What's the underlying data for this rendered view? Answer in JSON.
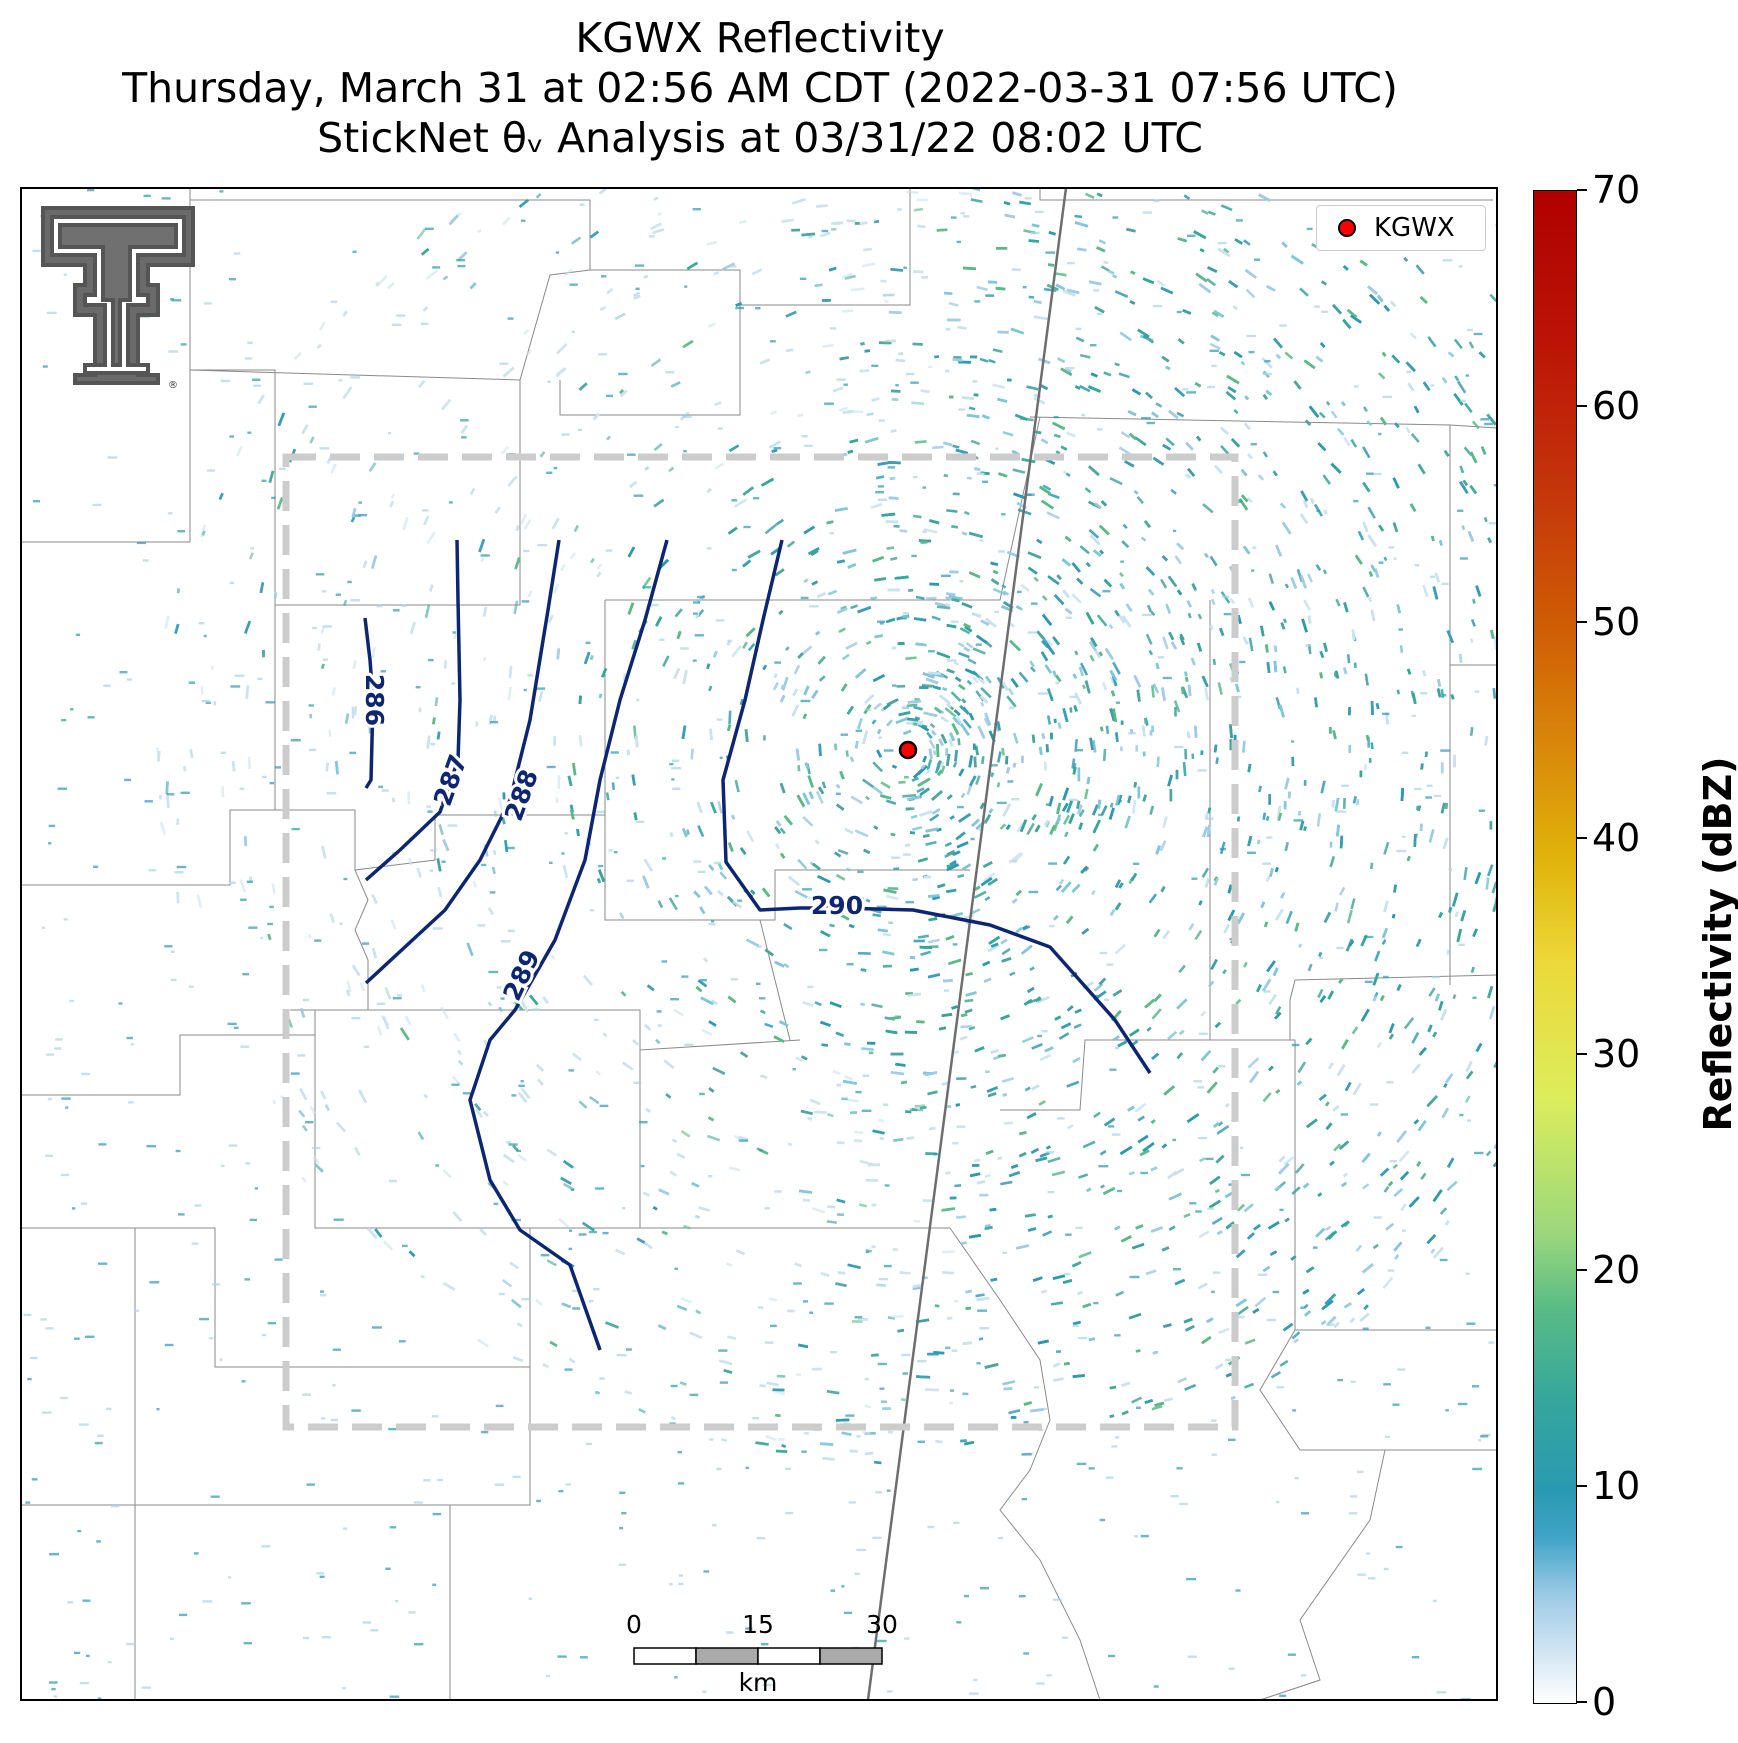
{
  "title": {
    "line1": "KGWX Reflectivity",
    "line2": "Thursday, March 31 at 02:56 AM CDT (2022-03-31 07:56 UTC)",
    "line3": "StickNet θᵥ Analysis at 03/31/22 08:02 UTC"
  },
  "legend": {
    "label": "KGWX",
    "marker_color": "#ff0000"
  },
  "radar": {
    "site": "KGWX",
    "marker_color": "#ff0000"
  },
  "colorbar": {
    "title": "Reflectivity (dBZ)",
    "ticks": [
      "0",
      "10",
      "20",
      "30",
      "40",
      "50",
      "60",
      "70"
    ],
    "range": [
      0,
      70
    ],
    "colors": [
      "#ffffff",
      "#2a9ab2",
      "#58bb87",
      "#dced5c",
      "#e0b20a",
      "#d9890b",
      "#c5360a",
      "#b00000"
    ]
  },
  "contours": {
    "color": "#0d2673",
    "labels": [
      "286",
      "287",
      "288",
      "289",
      "290"
    ]
  },
  "scalebar": {
    "ticks": [
      "0",
      "15",
      "30"
    ],
    "unit": "km"
  },
  "analysis_box": {
    "color": "#cccccc",
    "style": "dashed"
  },
  "logo": {
    "name": "texas-tech-double-t-logo",
    "mark": "®"
  }
}
